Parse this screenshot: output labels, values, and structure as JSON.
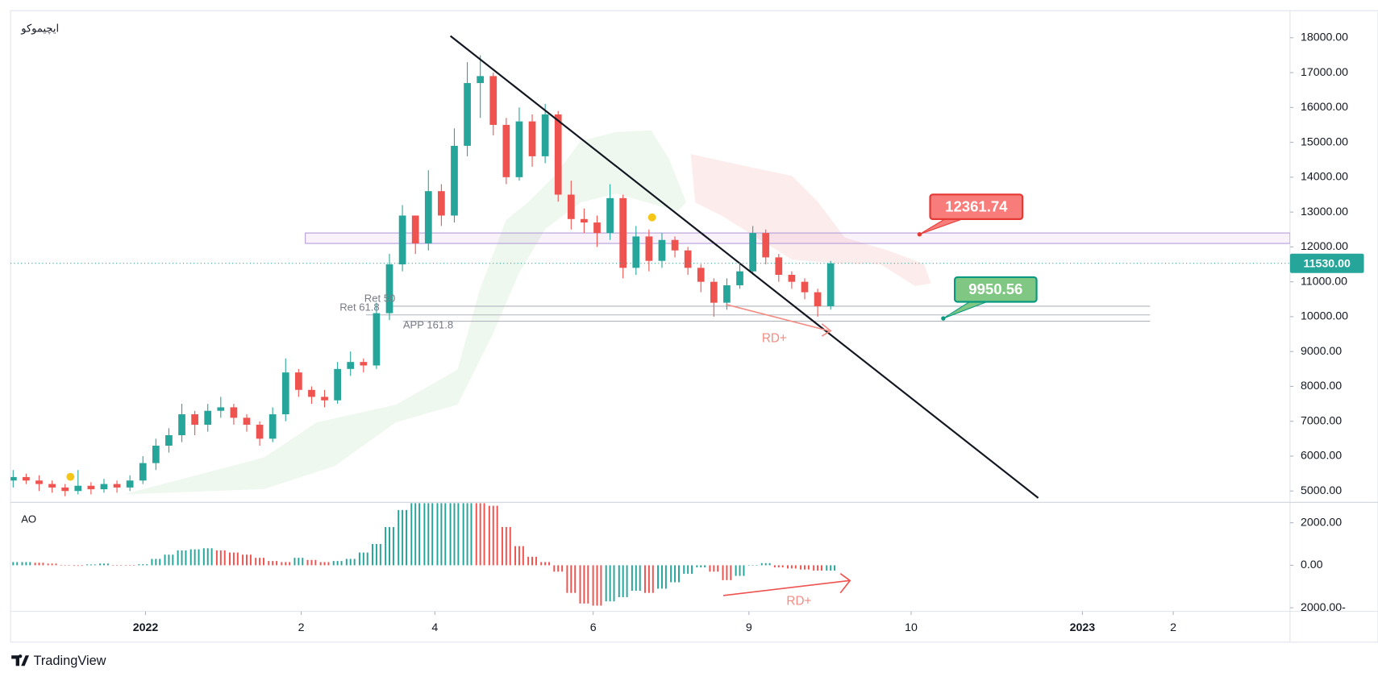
{
  "title": "ايچيموكو",
  "brand": "TradingView",
  "chart_data": {
    "type": "candlestick",
    "up_color": "#26a69a",
    "down_color": "#ef5350",
    "xlim": [
      -0.2,
      98.4
    ],
    "xticks": [
      {
        "value": 10.2,
        "label": "2022"
      },
      {
        "value": 22.2,
        "label": "2"
      },
      {
        "value": 32.5,
        "label": "4"
      },
      {
        "value": 44.7,
        "label": "6"
      },
      {
        "value": 56.7,
        "label": "9"
      },
      {
        "value": 69.2,
        "label": "10"
      },
      {
        "value": 82.4,
        "label": "2023"
      },
      {
        "value": 89.4,
        "label": "2"
      }
    ],
    "ylim": [
      4700,
      18700
    ],
    "yticks": [
      {
        "value": 5000,
        "label": "5000.00"
      },
      {
        "value": 6000,
        "label": "6000.00"
      },
      {
        "value": 7000,
        "label": "7000.00"
      },
      {
        "value": 8000,
        "label": "8000.00"
      },
      {
        "value": 9000,
        "label": "9000.00"
      },
      {
        "value": 10000,
        "label": "10000.00"
      },
      {
        "value": 11000,
        "label": "11000.00"
      },
      {
        "value": 12000,
        "label": "12000.00"
      },
      {
        "value": 13000,
        "label": "13000.00"
      },
      {
        "value": 14000,
        "label": "14000.00"
      },
      {
        "value": 15000,
        "label": "15000.00"
      },
      {
        "value": 16000,
        "label": "16000.00"
      },
      {
        "value": 17000,
        "label": "17000.00"
      },
      {
        "value": 18000,
        "label": "18000.00"
      }
    ],
    "open": [
      5300,
      5400,
      5300,
      5200,
      5100,
      5000,
      5150,
      5050,
      5200,
      5100,
      5300,
      5800,
      6300,
      6600,
      7200,
      6900,
      7300,
      7400,
      7100,
      6900,
      6500,
      7200,
      8400,
      7900,
      7700,
      7600,
      8500,
      8700,
      8600,
      10100,
      11500,
      12900,
      12100,
      13600,
      12900,
      14900,
      16700,
      16900,
      15500,
      14000,
      15600,
      14600,
      15800,
      13500,
      12800,
      12700,
      12400,
      13400,
      11400,
      12300,
      11600,
      12200,
      11900,
      11400,
      11000,
      10400,
      10900,
      11300,
      12400,
      11700,
      11200,
      11000,
      10700,
      10300
    ],
    "high": [
      5600,
      5500,
      5450,
      5300,
      5200,
      5600,
      5250,
      5350,
      5300,
      5450,
      6000,
      6500,
      6800,
      7500,
      7300,
      7500,
      7700,
      7500,
      7200,
      7000,
      7400,
      8800,
      8500,
      8000,
      7900,
      8700,
      9000,
      8800,
      10400,
      11800,
      13200,
      12900,
      14200,
      13800,
      15400,
      17300,
      17500,
      17000,
      15700,
      16000,
      15800,
      16100,
      15900,
      13900,
      13100,
      12900,
      13800,
      13500,
      12600,
      12500,
      12400,
      12300,
      12000,
      11500,
      11100,
      11100,
      11500,
      12600,
      12500,
      11800,
      11300,
      11100,
      10800,
      11600
    ],
    "low": [
      5100,
      5200,
      5000,
      4950,
      4850,
      4900,
      4900,
      4950,
      4950,
      5000,
      5200,
      5600,
      6100,
      6400,
      6600,
      6700,
      7100,
      6900,
      6700,
      6300,
      6400,
      7000,
      7700,
      7500,
      7400,
      7500,
      8300,
      8400,
      8500,
      9900,
      11300,
      11800,
      11900,
      12600,
      12700,
      14600,
      15700,
      15200,
      13800,
      13900,
      14300,
      14400,
      13300,
      12500,
      12400,
      12000,
      12200,
      11100,
      11200,
      11300,
      11400,
      11700,
      11200,
      10700,
      10000,
      10200,
      10800,
      11200,
      11500,
      11000,
      10800,
      10500,
      10000,
      10200
    ],
    "close": [
      5400,
      5300,
      5200,
      5100,
      5000,
      5150,
      5050,
      5200,
      5100,
      5300,
      5800,
      6300,
      6600,
      7200,
      6900,
      7300,
      7400,
      7100,
      6900,
      6500,
      7200,
      8400,
      7900,
      7700,
      7600,
      8500,
      8700,
      8600,
      10100,
      11500,
      12900,
      12100,
      13600,
      12900,
      14900,
      16700,
      16900,
      15500,
      14000,
      15600,
      14600,
      15800,
      13500,
      12800,
      12700,
      12400,
      13400,
      11400,
      12300,
      11600,
      12200,
      11900,
      11400,
      11000,
      10400,
      10900,
      11300,
      12400,
      11700,
      11200,
      11000,
      10700,
      10300,
      11530
    ],
    "last_price": {
      "value": 11530,
      "label": "11530.00"
    },
    "zone": [
      12100,
      12400
    ],
    "levels": [
      {
        "label": "Ret 50",
        "value": 10300
      },
      {
        "label": "Ret 61.8",
        "value": 10050
      },
      {
        "label": "APP 161.8",
        "value": 9870
      }
    ],
    "trendline": {
      "x": [
        33.7,
        79
      ],
      "y": [
        18050,
        4800
      ]
    },
    "callouts": [
      {
        "label": 12361.74,
        "color": "#f77c7a",
        "border": "#e53935"
      },
      {
        "label": 9950.56,
        "color": "#81c784",
        "border": "#089981"
      }
    ],
    "annotations": [
      "RD+",
      "RD+"
    ],
    "indicator": {
      "name": "AO",
      "ylim": [
        -2170,
        2920
      ],
      "yticks": [
        {
          "value": 2000,
          "label": "2000.00"
        },
        {
          "value": 0,
          "label": "0.00"
        },
        {
          "value": -2000,
          "label": "2000.00-"
        }
      ],
      "values": [
        150,
        150,
        120,
        80,
        -20,
        -30,
        40,
        80,
        10,
        -10,
        50,
        300,
        500,
        700,
        750,
        800,
        700,
        600,
        500,
        350,
        200,
        150,
        350,
        250,
        150,
        200,
        300,
        600,
        1000,
        1800,
        2600,
        3100,
        3300,
        3300,
        3400,
        3500,
        3400,
        2800,
        1800,
        900,
        400,
        150,
        -300,
        -1300,
        -1800,
        -1900,
        -1700,
        -1500,
        -1200,
        -1300,
        -1100,
        -800,
        -400,
        -100,
        -300,
        -700,
        -500,
        0,
        100,
        -100,
        -150,
        -200,
        -250,
        -250
      ]
    }
  }
}
